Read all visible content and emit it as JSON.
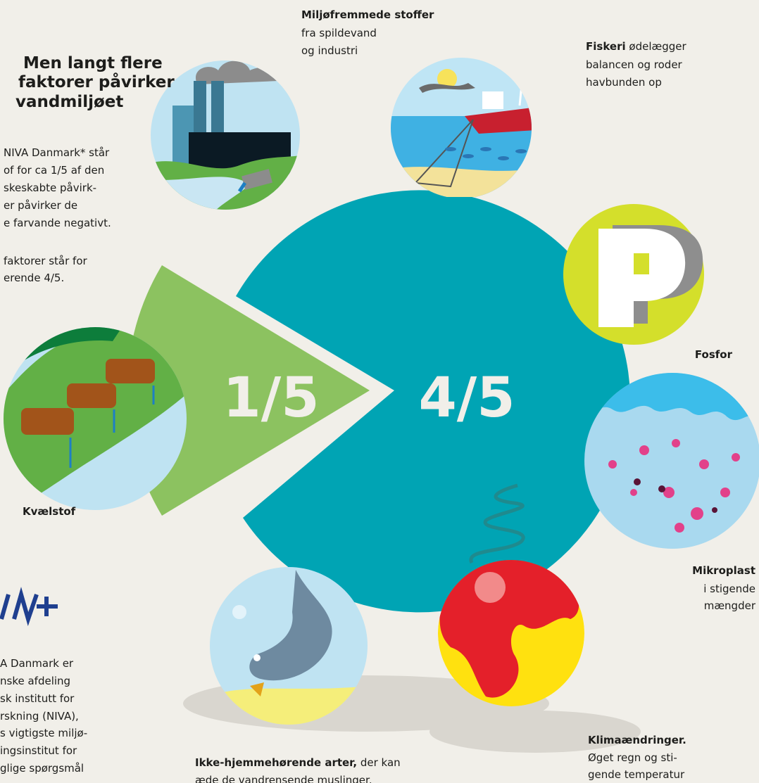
{
  "intro": {
    "heading": [
      "Men langt flere",
      "faktorer påvirker",
      "vandmiljøet"
    ],
    "paragraph1": [
      "NIVA Danmark* står",
      "of for ca 1/5 af den",
      "skeskabte påvirk-",
      "er påvirker de",
      "e farvande negativt."
    ],
    "paragraph2": [
      "faktorer står for",
      "erende 4/5."
    ]
  },
  "pie": {
    "small": "1/5",
    "large": "4/5"
  },
  "factors": [
    {
      "bold": "Kvælstof"
    },
    {
      "bold": "Miljøfremmede stoffer",
      "lines": [
        "fra spildevand",
        "og industri"
      ]
    },
    {
      "bold": "Fiskeri",
      "rest": "ødelægger",
      "lines": [
        "balancen og roder",
        "havbunden op"
      ]
    },
    {
      "bold": "Fosfor"
    },
    {
      "bold": "Mikroplast",
      "lines": [
        "i stigende",
        "mængder"
      ]
    },
    {
      "bold": "Klimaændringer.",
      "lines": [
        "Øget regn og sti-",
        "gende temperatur"
      ]
    },
    {
      "bold": "Ikke-hjemmehørende arter,",
      "rest": "der kan",
      "lines": [
        "æde de vandrensende muslinger."
      ]
    }
  ],
  "niva_note": [
    "A Danmark er",
    "nske afdeling",
    "sk institutt for",
    "rskning (NIVA),",
    "s vigtigste miljø-",
    "ingsinstitut for",
    "glige spørgsmål"
  ]
}
